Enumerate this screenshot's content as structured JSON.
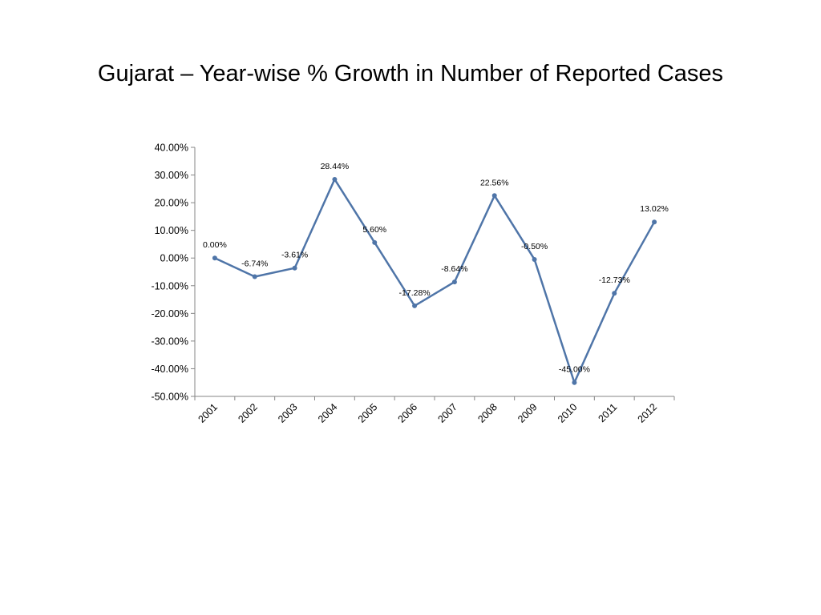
{
  "slide": {
    "title": "Gujarat – Year-wise % Growth in Number of Reported Cases"
  },
  "chart_data": {
    "type": "line",
    "title": "",
    "xlabel": "",
    "ylabel": "",
    "categories": [
      "2001",
      "2002",
      "2003",
      "2004",
      "2005",
      "2006",
      "2007",
      "2008",
      "2009",
      "2010",
      "2011",
      "2012"
    ],
    "series": [
      {
        "values": [
          0.0,
          -6.74,
          -3.61,
          28.44,
          5.6,
          -17.28,
          -8.64,
          22.56,
          -0.5,
          -45.0,
          -12.73,
          13.02
        ],
        "labels": [
          "0.00%",
          "-6.74%",
          "-3.61%",
          "28.44%",
          "5.60%",
          "-17.28%",
          "-8.64%",
          "22.56%",
          "-0.50%",
          "-45.00%",
          "-12.73%",
          "13.02%"
        ],
        "color": "#4F75A8"
      }
    ],
    "ylim": [
      -50,
      40
    ],
    "yticks": [
      40,
      30,
      20,
      10,
      0,
      -10,
      -20,
      -30,
      -40,
      -50
    ],
    "ytick_labels": [
      "40.00%",
      "30.00%",
      "20.00%",
      "10.00%",
      "0.00%",
      "-10.00%",
      "-20.00%",
      "-30.00%",
      "-40.00%",
      "-50.00%"
    ],
    "grid": false,
    "legend": "none",
    "axis_color": "#868686"
  }
}
